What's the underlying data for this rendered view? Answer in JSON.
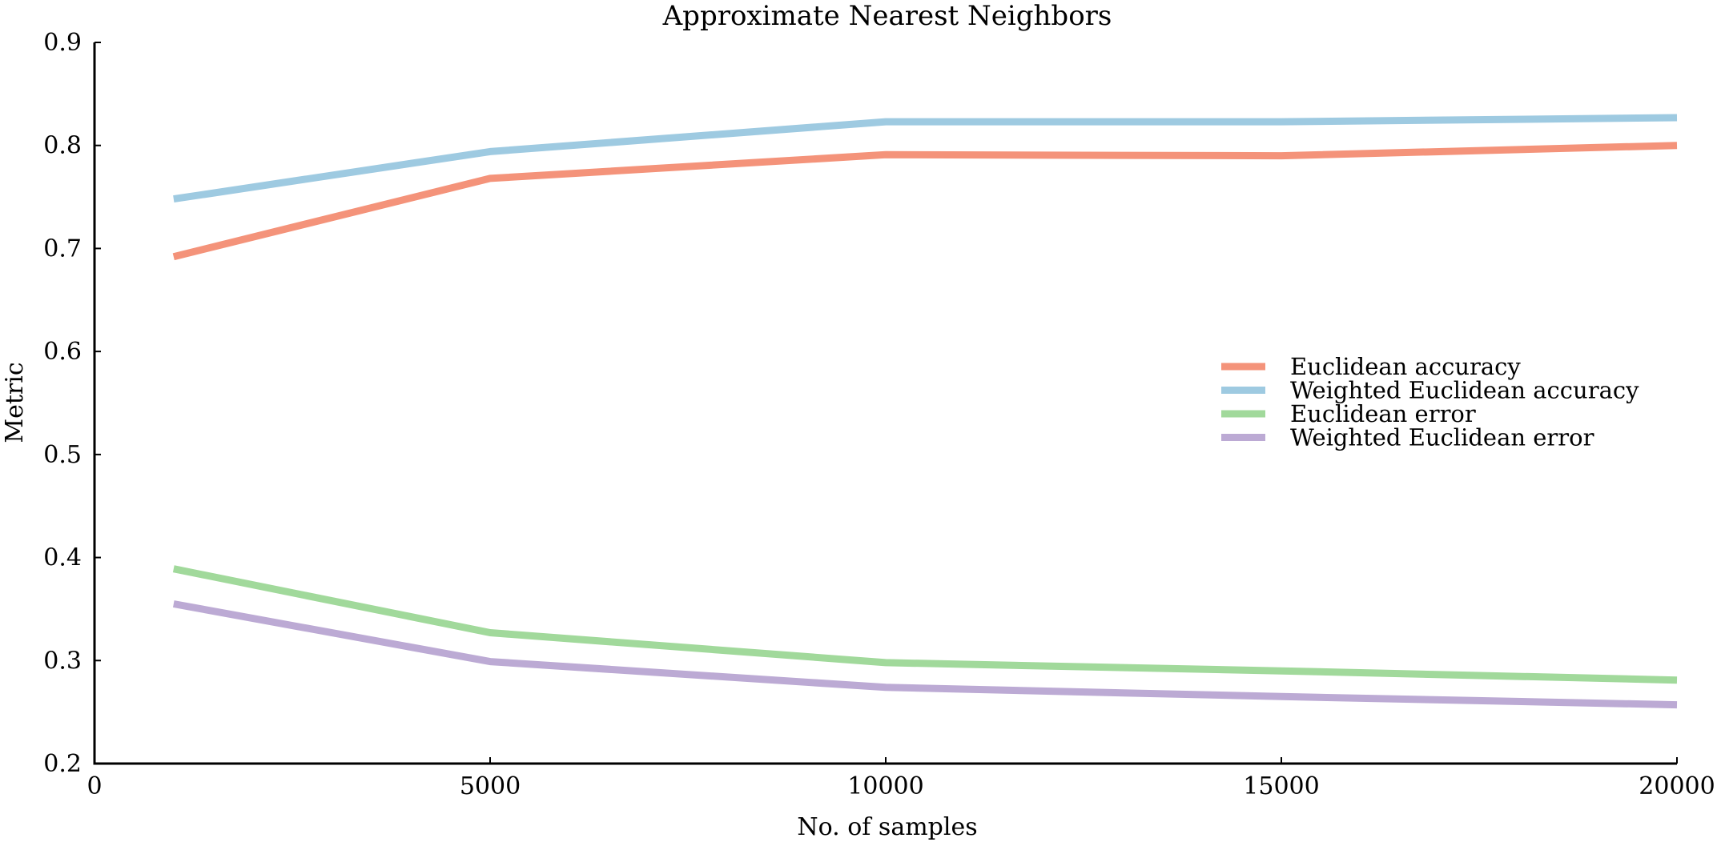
{
  "chart_data": {
    "type": "line",
    "title": "Approximate Nearest Neighbors",
    "xlabel": "No. of samples",
    "ylabel": "Metric",
    "xlim": [
      0,
      20000
    ],
    "ylim": [
      0.2,
      0.9
    ],
    "xticks": [
      0,
      5000,
      10000,
      15000,
      20000
    ],
    "yticks": [
      0.2,
      0.3,
      0.4,
      0.5,
      0.6,
      0.7,
      0.8,
      0.9
    ],
    "ytick_labels": [
      "0.2",
      "0.3",
      "0.4",
      "0.5",
      "0.6",
      "0.7",
      "0.8",
      "0.9"
    ],
    "grid": false,
    "legend_position": "center-right",
    "x": [
      1000,
      5000,
      10000,
      15000,
      20000
    ],
    "series": [
      {
        "name": "Euclidean accuracy",
        "color": "#f4937a",
        "values": [
          0.692,
          0.768,
          0.791,
          0.79,
          0.8
        ]
      },
      {
        "name": "Weighted Euclidean accuracy",
        "color": "#9ecae1",
        "values": [
          0.748,
          0.794,
          0.823,
          0.823,
          0.827
        ]
      },
      {
        "name": "Euclidean error",
        "color": "#a1d99b",
        "values": [
          0.389,
          0.327,
          0.298,
          0.29,
          0.281
        ]
      },
      {
        "name": "Weighted Euclidean error",
        "color": "#bcaad4",
        "values": [
          0.355,
          0.299,
          0.274,
          0.265,
          0.257
        ]
      }
    ]
  }
}
